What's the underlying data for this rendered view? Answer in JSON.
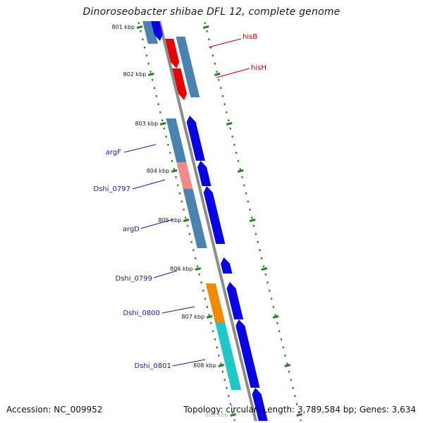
{
  "title": "Dinoroseobacter shibae DFL 12, complete genome",
  "footer": {
    "accession": "Accession: NC_009952",
    "summary": "Topology: circular; Length: 3,789,584 bp; Genes: 3,634"
  },
  "colors": {
    "backbone": "#8c8c8c",
    "tick_green": "#2f7d2f",
    "forward_cds": "#0a00e6",
    "reverse_cds": "#4a82b0",
    "red_cds": "#e60000",
    "pink_cds": "#f08a8a",
    "orange_cds": "#f08a00",
    "cyan_cds": "#1ec8c8",
    "label_blue": "#1a1aa0",
    "label_red": "#c00000"
  },
  "ticks": [
    {
      "label": "801 kbp"
    },
    {
      "label": "802 kbp"
    },
    {
      "label": "803 kbp"
    },
    {
      "label": "804 kbp"
    },
    {
      "label": "805 kbp"
    },
    {
      "label": "806 kbp"
    },
    {
      "label": "807 kbp"
    },
    {
      "label": "808 kbp"
    },
    {
      "label": "809 kbp"
    }
  ],
  "genes": [
    {
      "name": "hisB",
      "strand": "reverse",
      "color": "red"
    },
    {
      "name": "hisH",
      "strand": "reverse",
      "color": "red"
    },
    {
      "name": "argF",
      "strand": "forward",
      "color": "steel"
    },
    {
      "name": "Dshi_0797",
      "strand": "forward",
      "color": "pink"
    },
    {
      "name": "argD",
      "strand": "forward",
      "color": "steel"
    },
    {
      "name": "Dshi_0799",
      "strand": "forward",
      "color": "blue"
    },
    {
      "name": "Dshi_0800",
      "strand": "forward",
      "color": "orange"
    },
    {
      "name": "Dshi_0801",
      "strand": "forward",
      "color": "cyan"
    }
  ]
}
